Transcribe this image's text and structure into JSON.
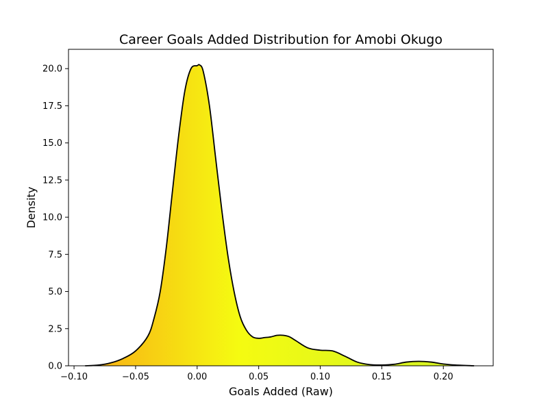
{
  "chart_data": {
    "type": "area",
    "title": "Career Goals Added Distribution for Amobi Okugo",
    "xlabel": "Goals Added (Raw)",
    "ylabel": "Density",
    "xlim": [
      -0.1045,
      0.2405
    ],
    "ylim": [
      0,
      21.3
    ],
    "xticks": [
      -0.1,
      -0.05,
      0.0,
      0.05,
      0.1,
      0.15,
      0.2
    ],
    "xtick_labels": [
      "−0.10",
      "−0.05",
      "0.00",
      "0.05",
      "0.10",
      "0.15",
      "0.20"
    ],
    "yticks": [
      0,
      2.5,
      5,
      7.5,
      10,
      12.5,
      15,
      17.5,
      20
    ],
    "ytick_labels": [
      "0.0",
      "2.5",
      "5.0",
      "7.5",
      "10.0",
      "12.5",
      "15.0",
      "17.5",
      "20.0"
    ],
    "grid": false,
    "legend": "none",
    "fill_gradient": [
      "#f9a415",
      "#f5fb11",
      "#e0f71c",
      "#d2f227"
    ],
    "line_color": "#000000",
    "x": [
      -0.091,
      -0.08,
      -0.07,
      -0.06,
      -0.05,
      -0.04,
      -0.035,
      -0.03,
      -0.025,
      -0.02,
      -0.015,
      -0.01,
      -0.005,
      0.0,
      0.002,
      0.005,
      0.01,
      0.015,
      0.02,
      0.025,
      0.03,
      0.035,
      0.04,
      0.045,
      0.05,
      0.055,
      0.06,
      0.065,
      0.07,
      0.075,
      0.08,
      0.09,
      0.1,
      0.11,
      0.12,
      0.13,
      0.14,
      0.15,
      0.16,
      0.17,
      0.18,
      0.19,
      0.2,
      0.21,
      0.225
    ],
    "y": [
      0.0,
      0.05,
      0.2,
      0.5,
      1.0,
      2.0,
      3.2,
      5.0,
      8.0,
      11.8,
      15.5,
      18.5,
      20.0,
      20.2,
      20.25,
      19.8,
      17.5,
      14.0,
      10.5,
      7.4,
      5.0,
      3.3,
      2.4,
      1.95,
      1.85,
      1.9,
      1.95,
      2.05,
      2.05,
      1.95,
      1.7,
      1.2,
      1.05,
      1.0,
      0.65,
      0.25,
      0.08,
      0.05,
      0.1,
      0.25,
      0.3,
      0.25,
      0.12,
      0.05,
      0.0
    ]
  }
}
